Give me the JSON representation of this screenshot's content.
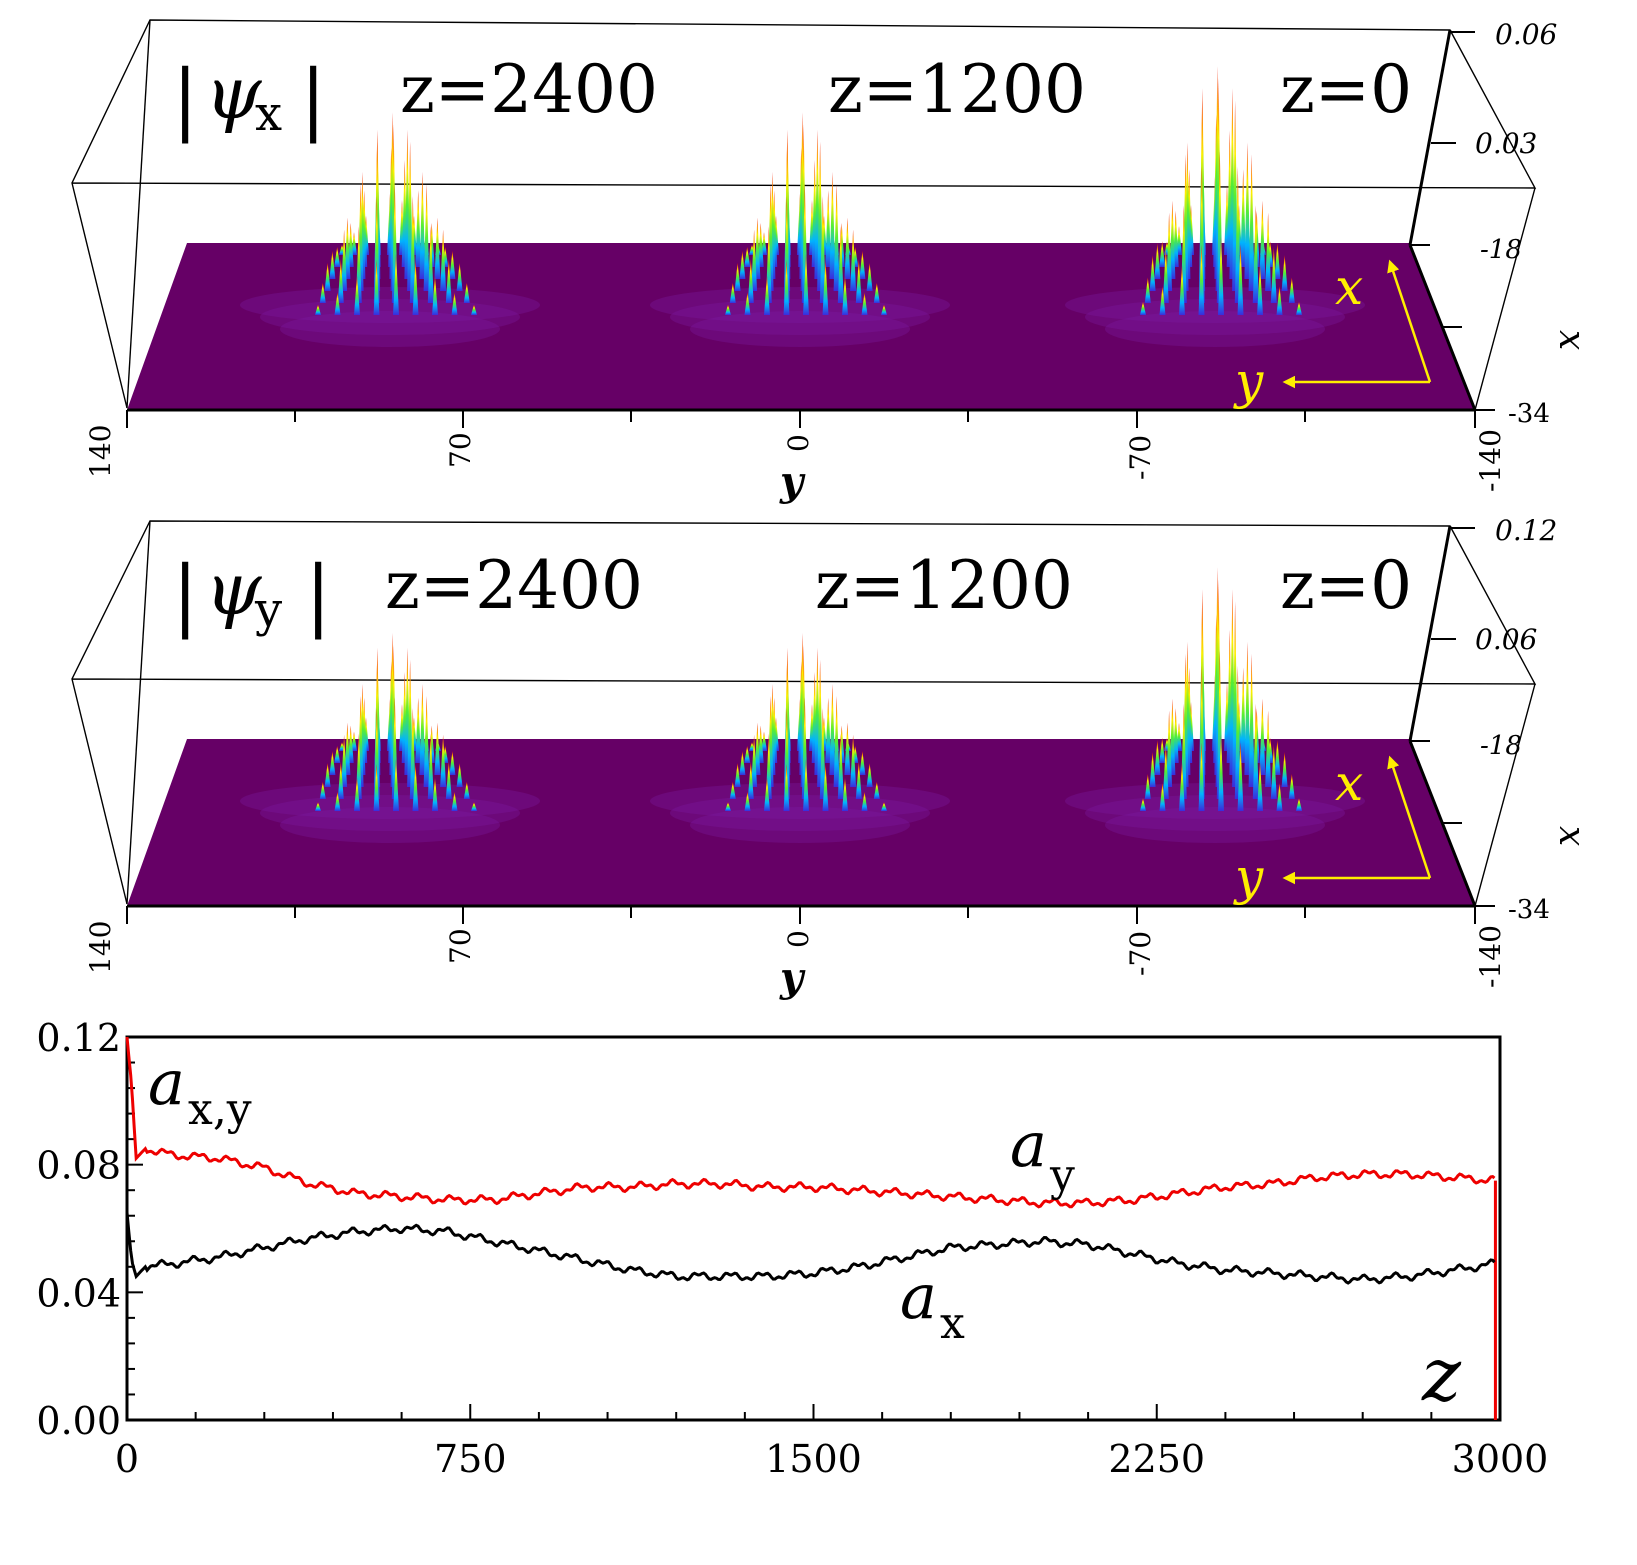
{
  "panels": [
    {
      "id": "psi-x",
      "label_symbol": "ψ",
      "label_sub": "x",
      "z_labels": [
        "z=2400",
        "z=1200",
        "z=0"
      ],
      "z_axis_ticks": [
        "0.06",
        "0.03"
      ],
      "x_axis_title": "x",
      "x_axis_ticks": [
        "-18",
        "-34"
      ],
      "y_axis_title": "y",
      "y_axis_ticks": [
        "140",
        "70",
        "0",
        "-70",
        "-140"
      ],
      "inset_x": "x",
      "inset_y": "y",
      "peaks": [
        0.047,
        0.047,
        0.06
      ]
    },
    {
      "id": "psi-y",
      "label_symbol": "ψ",
      "label_sub": "y",
      "z_labels": [
        "z=2400",
        "z=1200",
        "z=0"
      ],
      "z_axis_ticks": [
        "0.12",
        "0.06"
      ],
      "x_axis_title": "x",
      "x_axis_ticks": [
        "-18",
        "-34"
      ],
      "y_axis_title": "y",
      "y_axis_ticks": [
        "140",
        "70",
        "0",
        "-70",
        "-140"
      ],
      "inset_x": "x",
      "inset_y": "y",
      "peaks": [
        0.08,
        0.08,
        0.117
      ]
    }
  ],
  "colors": {
    "surface": "#660066",
    "series_ay": "#ee0000",
    "series_ax": "#000000",
    "inset_arrow": "#ffee00"
  },
  "chart_data": {
    "type": "line",
    "ylabel_main": "a",
    "ylabel_sub": "x,y",
    "xlabel": "z",
    "xlim": [
      0,
      3000
    ],
    "ylim": [
      0,
      0.12
    ],
    "x_ticks": [
      "0",
      "750",
      "1500",
      "2250",
      "3000"
    ],
    "y_ticks": [
      "0.00",
      "0.04",
      "0.08",
      "0.12"
    ],
    "series": [
      {
        "name": "a_y",
        "label_main": "a",
        "label_sub": "y",
        "color": "#ee0000",
        "x": [
          0,
          10,
          20,
          40,
          100,
          200,
          300,
          400,
          500,
          600,
          700,
          800,
          900,
          1000,
          1100,
          1200,
          1300,
          1400,
          1500,
          1600,
          1700,
          1800,
          1900,
          2000,
          2100,
          2200,
          2300,
          2400,
          2500,
          2600,
          2700,
          2800,
          2900,
          2990
        ],
        "y": [
          0.12,
          0.105,
          0.082,
          0.085,
          0.083,
          0.082,
          0.079,
          0.074,
          0.071,
          0.07,
          0.069,
          0.069,
          0.071,
          0.073,
          0.073,
          0.074,
          0.074,
          0.073,
          0.073,
          0.072,
          0.071,
          0.07,
          0.069,
          0.068,
          0.068,
          0.069,
          0.071,
          0.073,
          0.074,
          0.076,
          0.077,
          0.077,
          0.076,
          0.075
        ]
      },
      {
        "name": "a_x",
        "label_main": "a",
        "label_sub": "x",
        "color": "#000000",
        "x": [
          0,
          10,
          20,
          40,
          100,
          200,
          300,
          400,
          500,
          600,
          700,
          800,
          900,
          1000,
          1100,
          1200,
          1300,
          1400,
          1500,
          1600,
          1700,
          1800,
          1900,
          2000,
          2100,
          2200,
          2300,
          2400,
          2500,
          2600,
          2700,
          2800,
          2900,
          2990
        ],
        "y": [
          0.065,
          0.05,
          0.045,
          0.048,
          0.049,
          0.051,
          0.054,
          0.057,
          0.059,
          0.06,
          0.059,
          0.056,
          0.053,
          0.05,
          0.047,
          0.045,
          0.045,
          0.045,
          0.046,
          0.048,
          0.051,
          0.054,
          0.055,
          0.056,
          0.055,
          0.052,
          0.049,
          0.047,
          0.046,
          0.045,
          0.044,
          0.045,
          0.047,
          0.049
        ]
      }
    ]
  }
}
